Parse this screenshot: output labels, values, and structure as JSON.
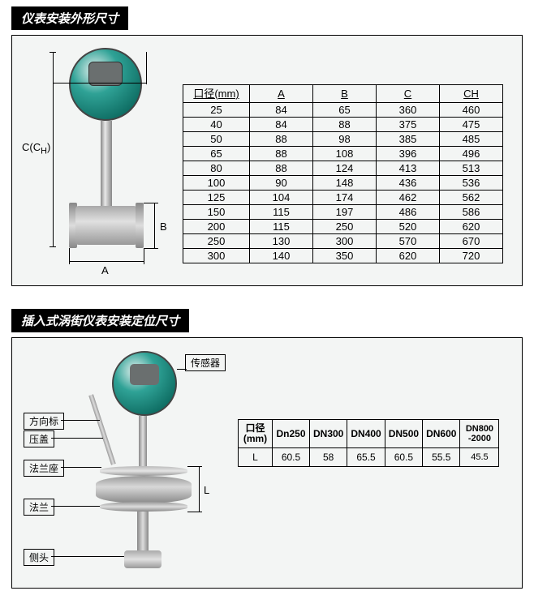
{
  "section1": {
    "title": "仪表安装外形尺寸",
    "dim_labels": {
      "C": "C(C",
      "CH_sub": "H",
      "C_close": ")",
      "B": "B",
      "A": "A"
    },
    "table": {
      "columns": [
        "口径(mm)",
        "A",
        "B",
        "C",
        "CH"
      ],
      "rows": [
        [
          "25",
          "84",
          "65",
          "360",
          "460"
        ],
        [
          "40",
          "84",
          "88",
          "375",
          "475"
        ],
        [
          "50",
          "88",
          "98",
          "385",
          "485"
        ],
        [
          "65",
          "88",
          "108",
          "396",
          "496"
        ],
        [
          "80",
          "88",
          "124",
          "413",
          "513"
        ],
        [
          "100",
          "90",
          "148",
          "436",
          "536"
        ],
        [
          "125",
          "104",
          "174",
          "462",
          "562"
        ],
        [
          "150",
          "115",
          "197",
          "486",
          "586"
        ],
        [
          "200",
          "115",
          "250",
          "520",
          "620"
        ],
        [
          "250",
          "130",
          "300",
          "570",
          "670"
        ],
        [
          "300",
          "140",
          "350",
          "620",
          "720"
        ]
      ]
    }
  },
  "section2": {
    "title": "插入式涡街仪表安装定位尺寸",
    "callouts": {
      "sensor": "传感器",
      "direction": "方向标",
      "cover": "压盖",
      "flange_seat": "法兰座",
      "flange": "法兰",
      "probe": "侧头",
      "L": "L"
    },
    "table": {
      "header": [
        "口径(mm)",
        "Dn250",
        "DN300",
        "DN400",
        "DN500",
        "DN600",
        "DN800-2000"
      ],
      "row_label": "L",
      "values": [
        "60.5",
        "58",
        "65.5",
        "60.5",
        "55.5",
        "45.5"
      ]
    }
  },
  "colors": {
    "panel_bg": "#f3f5f4",
    "border": "#000000",
    "header_bg": "#000000",
    "header_fg": "#ffffff",
    "gauge_teal": "#2fa296",
    "metal_light": "#e0e0e0",
    "metal_dark": "#888888"
  }
}
